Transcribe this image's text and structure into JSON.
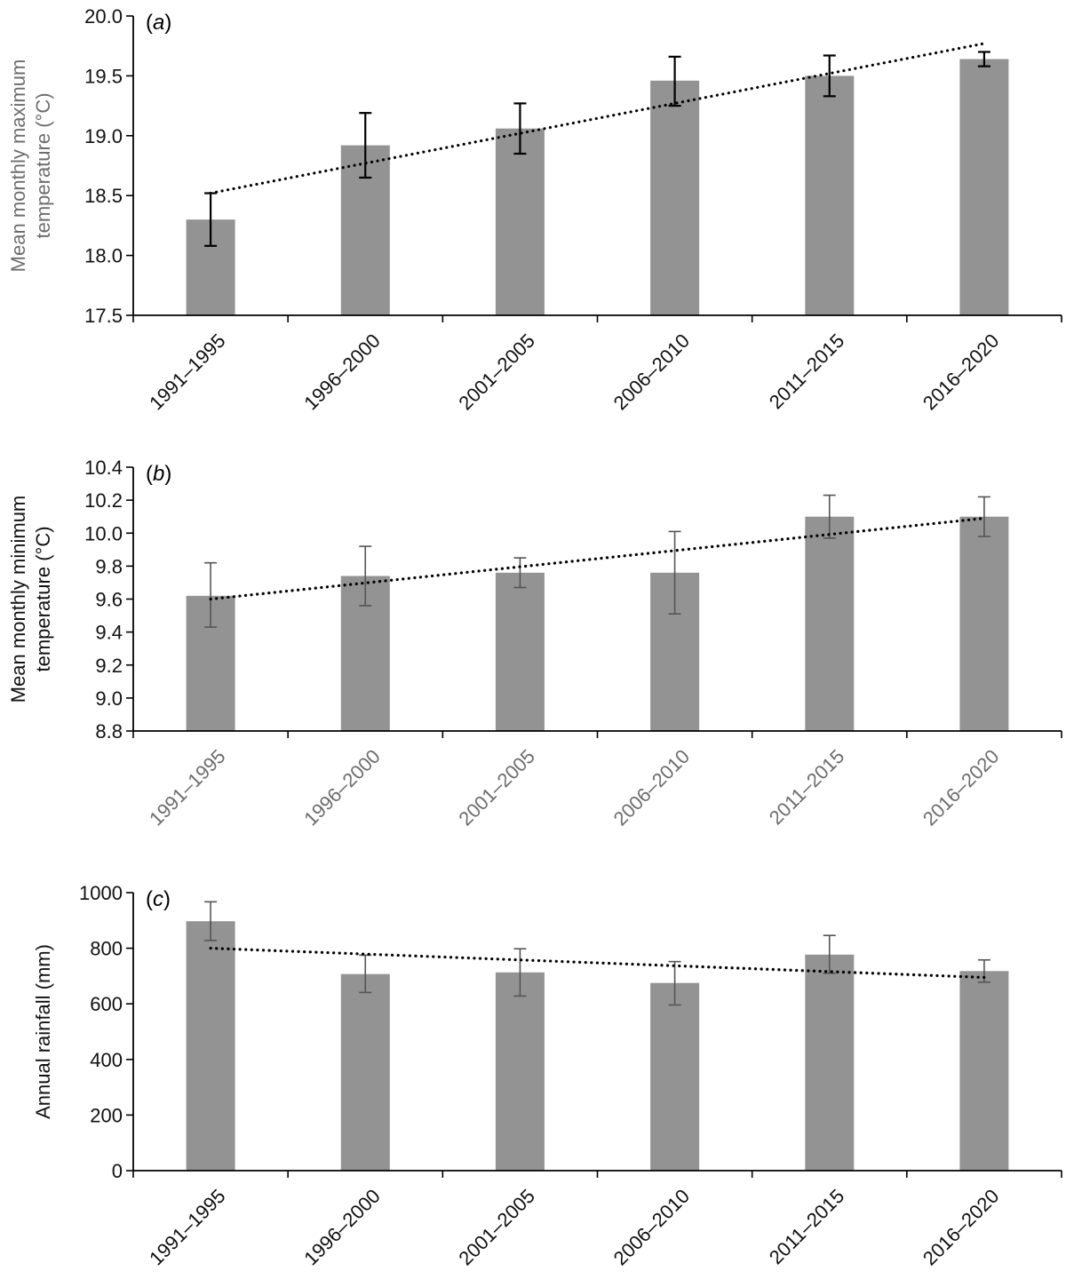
{
  "colors": {
    "bar": "#939393",
    "axis": "#000000",
    "trend": "#000000",
    "grey_text": "#6d6d6d"
  },
  "chart_data": [
    {
      "type": "bar",
      "panel_label_prefix": "(",
      "panel_label_letter": "a",
      "panel_label_suffix": ")",
      "categories": [
        "1991–1995",
        "1996–2000",
        "2001–2005",
        "2006–2010",
        "2011–2015",
        "2016–2020"
      ],
      "values": [
        18.3,
        18.92,
        19.06,
        19.46,
        19.5,
        19.64
      ],
      "error_low": [
        18.08,
        18.65,
        18.85,
        19.25,
        19.33,
        19.58
      ],
      "error_high": [
        18.52,
        19.19,
        19.27,
        19.66,
        19.67,
        19.7
      ],
      "trendline": {
        "style": "dotted",
        "start": 18.52,
        "end": 19.77
      },
      "ylabel_lines": [
        "Mean monthly maximum",
        "temperature (°C)"
      ],
      "ylabel_color": "grey",
      "tick_label_color": "black",
      "errorbar_color": "black",
      "ylim": [
        17.5,
        20.0
      ],
      "yticks": [
        "17.5",
        "18.0",
        "18.5",
        "19.0",
        "19.5",
        "20.0"
      ],
      "grid": false
    },
    {
      "type": "bar",
      "panel_label_prefix": "(",
      "panel_label_letter": "b",
      "panel_label_suffix": ")",
      "categories": [
        "1991–1995",
        "1996–2000",
        "2001–2005",
        "2006–2010",
        "2011–2015",
        "2016–2020"
      ],
      "values": [
        9.62,
        9.74,
        9.76,
        9.76,
        10.1,
        10.1
      ],
      "error_low": [
        9.43,
        9.56,
        9.67,
        9.51,
        9.97,
        9.98
      ],
      "error_high": [
        9.82,
        9.92,
        9.85,
        10.01,
        10.23,
        10.22
      ],
      "trendline": {
        "style": "dotted",
        "start": 9.6,
        "end": 10.09
      },
      "ylabel_lines": [
        "Mean monthly minimum",
        "temperature (°C)"
      ],
      "ylabel_color": "black",
      "tick_label_color": "grey",
      "errorbar_color": "grey",
      "ylim": [
        8.8,
        10.4
      ],
      "yticks": [
        "8.8",
        "9.0",
        "9.2",
        "9.4",
        "9.6",
        "9.8",
        "10.0",
        "10.2",
        "10.4"
      ],
      "grid": false
    },
    {
      "type": "bar",
      "panel_label_prefix": "(",
      "panel_label_letter": "c",
      "panel_label_suffix": ")",
      "categories": [
        "1991–1995",
        "1996–2000",
        "2001–2005",
        "2006–2010",
        "2011–2015",
        "2016–2020"
      ],
      "values": [
        897,
        707,
        713,
        675,
        777,
        718
      ],
      "error_low": [
        828,
        641,
        628,
        596,
        710,
        678
      ],
      "error_high": [
        967,
        775,
        798,
        752,
        846,
        758
      ],
      "trendline": {
        "style": "dotted",
        "start": 800,
        "end": 695
      },
      "ylabel_lines": [
        "Annual rainfall (mm)"
      ],
      "ylabel_color": "black",
      "tick_label_color": "black",
      "errorbar_color": "grey",
      "ylim": [
        0,
        1000
      ],
      "yticks": [
        "0",
        "200",
        "400",
        "600",
        "800",
        "1000"
      ],
      "grid": false
    }
  ]
}
